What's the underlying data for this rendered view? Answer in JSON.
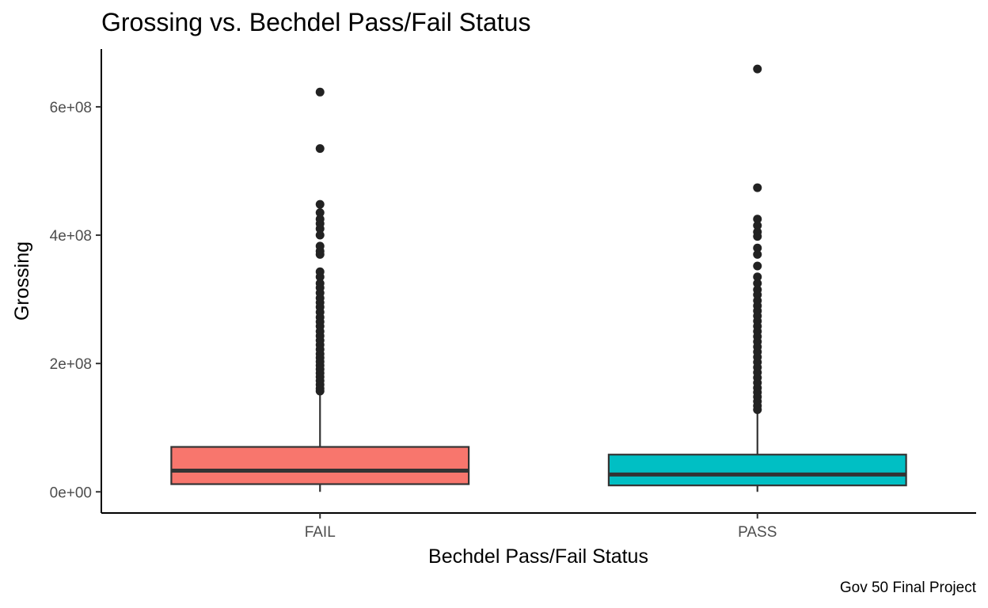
{
  "chart_data": {
    "type": "box",
    "title": "Grossing vs. Bechdel Pass/Fail Status",
    "xlabel": "Bechdel Pass/Fail Status",
    "ylabel": "Grossing",
    "caption": "Gov 50 Final Project",
    "categories": [
      "FAIL",
      "PASS"
    ],
    "y_ticks": [
      0,
      200000000,
      400000000,
      600000000
    ],
    "y_tick_labels": [
      "0e+00",
      "2e+08",
      "4e+08",
      "6e+08"
    ],
    "ylim": [
      -33000000,
      690000000
    ],
    "grid": false,
    "legend": "none",
    "series": [
      {
        "category": "FAIL",
        "color": "#f8766d",
        "min": 0,
        "q1": 12000000,
        "median": 33000000,
        "q3": 70000000,
        "whisker_high": 155000000,
        "outliers": [
          623000000,
          535000000,
          448000000,
          435000000,
          425000000,
          418000000,
          410000000,
          400000000,
          383000000,
          375000000,
          370000000,
          343000000,
          335000000,
          325000000,
          318000000,
          310000000,
          302000000,
          295000000,
          288000000,
          280000000,
          272000000,
          265000000,
          258000000,
          250000000,
          243000000,
          236000000,
          229000000,
          222000000,
          215000000,
          209000000,
          203000000,
          197000000,
          191000000,
          185000000,
          179000000,
          173000000,
          167000000,
          161000000,
          157000000
        ]
      },
      {
        "category": "PASS",
        "color": "#00bfc4",
        "min": 0,
        "q1": 10000000,
        "median": 27000000,
        "q3": 58000000,
        "whisker_high": 125000000,
        "outliers": [
          659000000,
          474000000,
          425000000,
          415000000,
          405000000,
          398000000,
          380000000,
          370000000,
          352000000,
          335000000,
          325000000,
          315000000,
          307000000,
          298000000,
          290000000,
          282000000,
          274000000,
          266000000,
          258000000,
          250000000,
          242000000,
          234000000,
          226000000,
          218000000,
          210000000,
          202000000,
          194000000,
          186000000,
          178000000,
          170000000,
          162000000,
          155000000,
          148000000,
          141000000,
          134000000,
          128000000
        ]
      }
    ]
  }
}
